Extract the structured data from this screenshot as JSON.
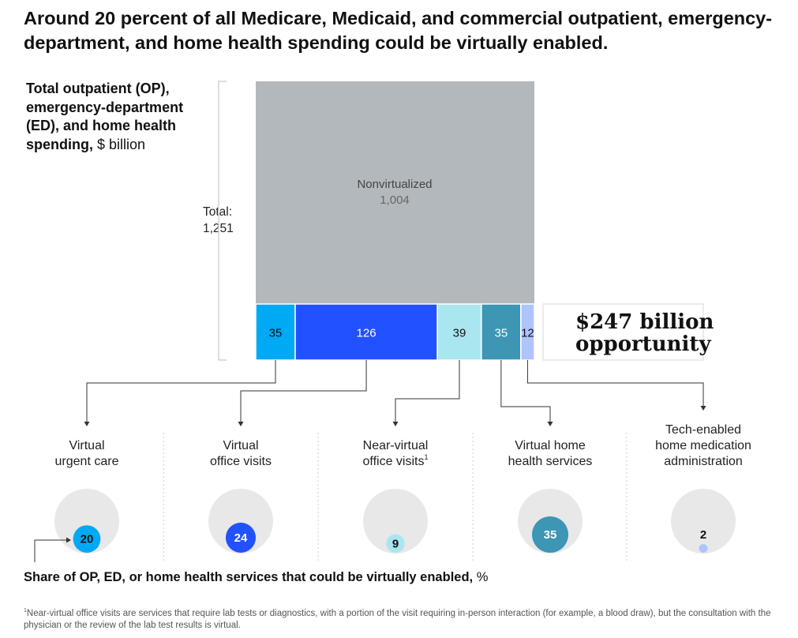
{
  "title": "Around 20 percent of all Medicare, Medicaid, and commercial outpatient, emergency-department, and home health spending could be virtually enabled.",
  "ylabel": {
    "bold": "Total outpatient (OP), emergency-department (ED), and home health spending,",
    "unit": "$ billion"
  },
  "total": {
    "label": "Total:",
    "value": "1,251"
  },
  "opportunity": "$247 billion opportunity",
  "share_label": {
    "bold": "Share of OP, ED, or home health services that could be virtually enabled,",
    "unit": "%"
  },
  "footnote": {
    "marker": "1",
    "text": "Near-virtual office visits are services that require lab tests or diagnostics, with a portion of the visit requiring in-person interaction (for example, a blood draw), but the consultation with the physician or the review of the lab test results is virtual."
  },
  "chart_data": [
    {
      "type": "bar",
      "stacked": true,
      "unit": "$ billion",
      "total": 1251,
      "nonvirtual": {
        "name": "Nonvirtualized",
        "value": 1004,
        "label": "1,004",
        "color": "#b3b8bd"
      },
      "segments": [
        {
          "value": 35,
          "label": "35",
          "color": "#00a9f4",
          "text_color": "#111111"
        },
        {
          "value": 126,
          "label": "126",
          "color": "#2251ff",
          "text_color": "#ffffff"
        },
        {
          "value": 39,
          "label": "39",
          "color": "#aae6f0",
          "text_color": "#111111"
        },
        {
          "value": 35,
          "label": "35",
          "color": "#3c96b4",
          "text_color": "#ffffff"
        },
        {
          "value": 12,
          "label": "12",
          "color": "#afc3ff",
          "text_color": "#111111"
        }
      ]
    },
    {
      "type": "bubble",
      "unit": "%",
      "categories": [
        {
          "name": "Virtual urgent care",
          "lines": [
            "Virtual",
            "urgent care"
          ],
          "value": 20,
          "color": "#00a9f4",
          "text_color": "#111111"
        },
        {
          "name": "Virtual office visits",
          "lines": [
            "Virtual",
            "office visits"
          ],
          "value": 24,
          "color": "#2251ff",
          "text_color": "#ffffff"
        },
        {
          "name": "Near-virtual office visits",
          "lines": [
            "Near-virtual",
            "office visits"
          ],
          "footnote": "1",
          "value": 9,
          "color": "#aae6f0",
          "text_color": "#111111"
        },
        {
          "name": "Virtual home health services",
          "lines": [
            "Virtual home",
            "health services"
          ],
          "value": 35,
          "color": "#3c96b4",
          "text_color": "#ffffff"
        },
        {
          "name": "Tech-enabled home medication administration",
          "lines": [
            "Tech-enabled",
            "home medication",
            "administration"
          ],
          "value": 2,
          "color": "#afc3ff",
          "text_color": "#111111"
        }
      ]
    }
  ]
}
